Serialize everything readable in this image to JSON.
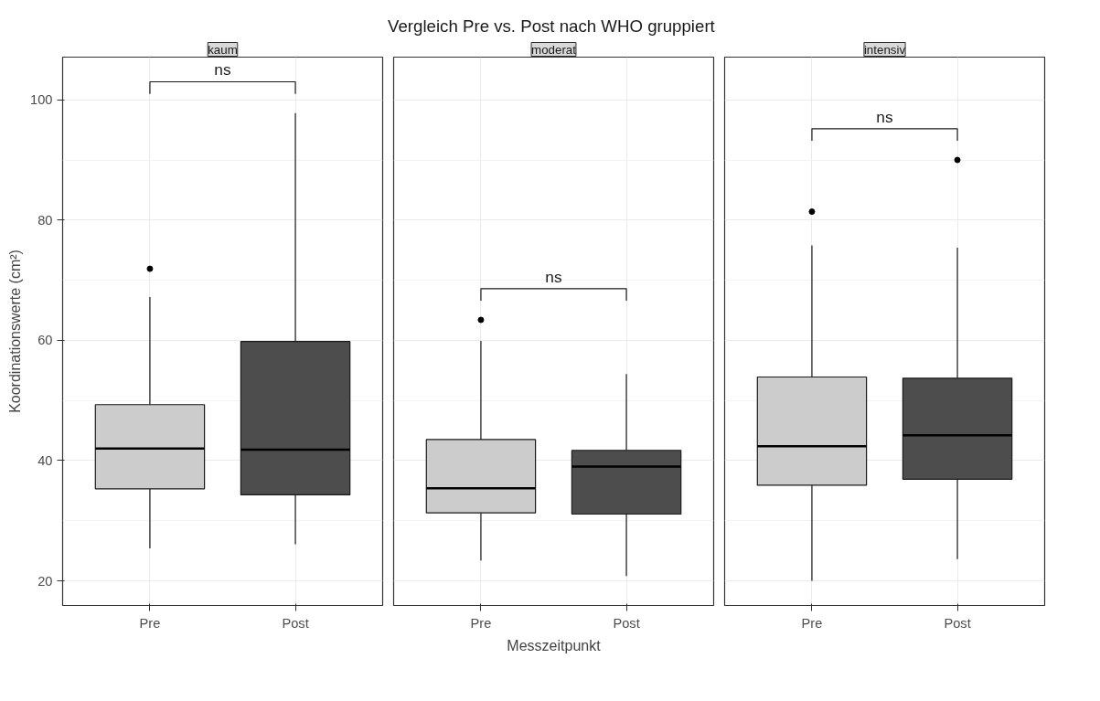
{
  "chart_data": [
    {
      "type": "box",
      "subtitle": "kaum",
      "ylabel": "Koordinationswerte (cm²)",
      "categories": [
        "Pre",
        "Post"
      ],
      "colors": [
        "#cccccc",
        "#4d4d4d"
      ],
      "ylim": [
        15.9,
        107.1
      ],
      "yticks": [
        20,
        40,
        60,
        80,
        100
      ],
      "grid": true,
      "annotations": [
        "ns"
      ],
      "boxes": [
        {
          "low": 25.4,
          "q1": 35.3,
          "median": 42.0,
          "q3": 49.3,
          "high": 67.2,
          "outliers": [
            71.9
          ]
        },
        {
          "low": 26.1,
          "q1": 34.3,
          "median": 41.8,
          "q3": 59.8,
          "high": 97.8
        }
      ]
    },
    {
      "type": "box",
      "title": "Vergleich Pre vs. Post nach WHO  gruppiert",
      "subtitle": "moderat",
      "xlabel": "Messzeitpunkt",
      "categories": [
        "Pre",
        "Post"
      ],
      "colors": [
        "#cccccc",
        "#4d4d4d"
      ],
      "ylim": [
        15.9,
        107.1
      ],
      "yticks": [
        20,
        40,
        60,
        80,
        100
      ],
      "grid": true,
      "tick_labels": "x",
      "annotations": [
        "ns"
      ],
      "boxes": [
        {
          "low": 23.4,
          "q1": 31.3,
          "median": 35.4,
          "q3": 43.5,
          "high": 59.9,
          "outliers": [
            63.4
          ]
        },
        {
          "low": 20.8,
          "q1": 31.1,
          "median": 39.0,
          "q3": 41.7,
          "high": 54.4
        }
      ]
    },
    {
      "type": "box",
      "subtitle": "intensiv",
      "categories": [
        "Pre",
        "Post"
      ],
      "colors": [
        "#cccccc",
        "#4d4d4d"
      ],
      "ylim": [
        15.9,
        107.1
      ],
      "yticks": [
        20,
        40,
        60,
        80,
        100
      ],
      "grid": true,
      "tick_labels": "x",
      "annotations": [
        "ns"
      ],
      "boxes": [
        {
          "low": 20.0,
          "q1": 35.9,
          "median": 42.4,
          "q3": 53.9,
          "high": 75.8,
          "outliers": [
            81.4
          ]
        },
        {
          "low": 23.6,
          "q1": 36.9,
          "median": 44.2,
          "q3": 53.7,
          "high": 75.4,
          "outliers": [
            90.0
          ]
        }
      ]
    }
  ]
}
